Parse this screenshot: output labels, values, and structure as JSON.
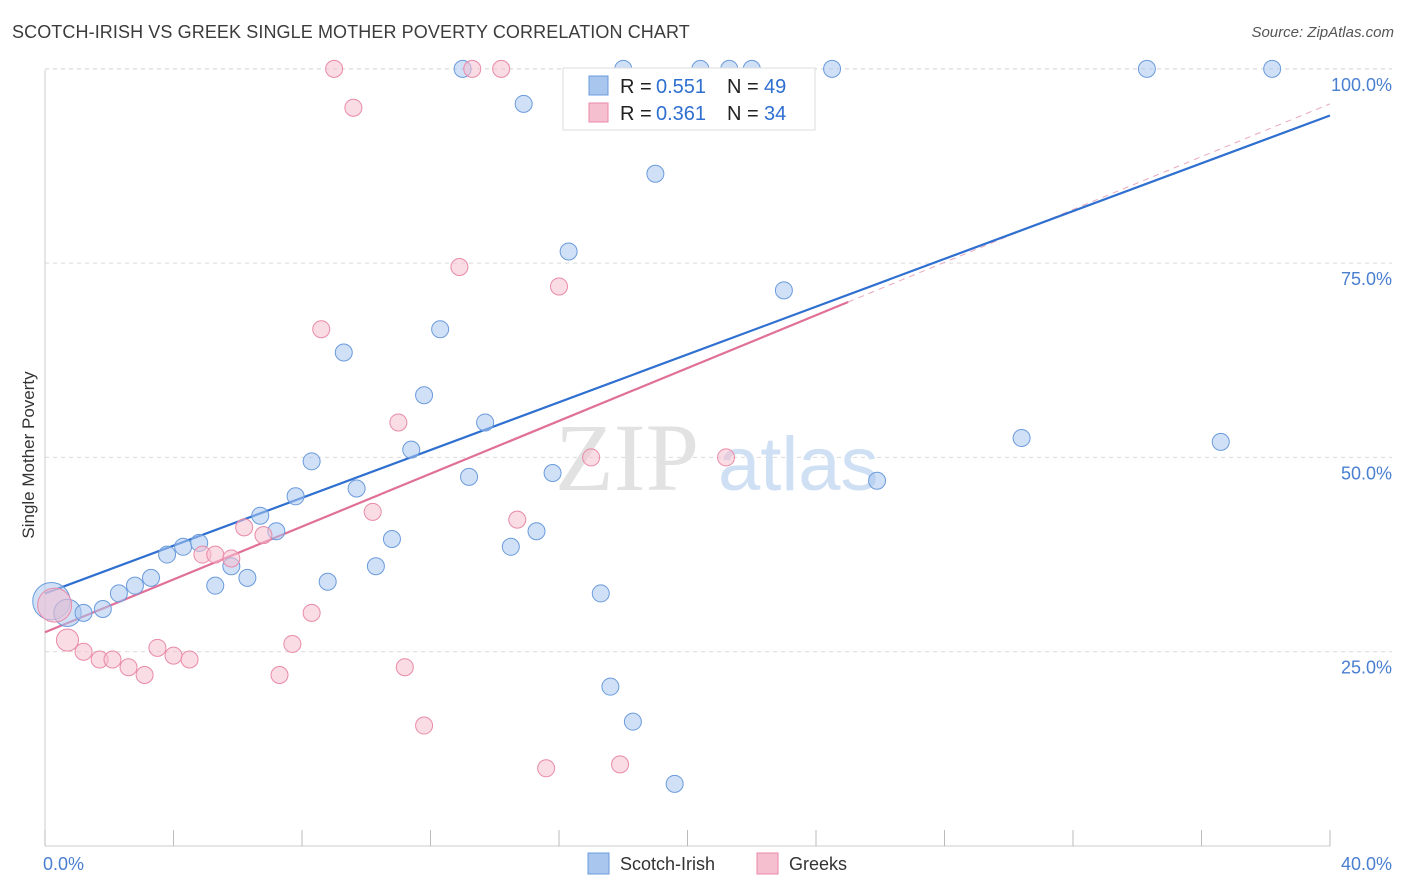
{
  "title": "SCOTCH-IRISH VS GREEK SINGLE MOTHER POVERTY CORRELATION CHART",
  "source": "Source: ZipAtlas.com",
  "watermark": {
    "zip": "ZIP",
    "atlas": "atlas"
  },
  "colors": {
    "blue_fill": "#a9c7ee",
    "blue_stroke": "#6b9bdc",
    "blue_line": "#2f6fd0",
    "pink_fill": "#f6bfd0",
    "pink_stroke": "#e98aa8",
    "pink_line": "#e07098",
    "grid": "#d9d9d9",
    "axis_text": "#4a7fd0"
  },
  "legend": {
    "r_label": "R =",
    "n_label": "N =",
    "series": [
      {
        "name": "Scotch-Irish",
        "r": "0.551",
        "n": "49"
      },
      {
        "name": "Greeks",
        "r": "0.361",
        "n": "34"
      }
    ]
  },
  "chart_data": {
    "type": "scatter",
    "title": "SCOTCH-IRISH VS GREEK SINGLE MOTHER POVERTY CORRELATION CHART",
    "xlabel": "",
    "ylabel": "Single Mother Poverty",
    "xlim": [
      0,
      40
    ],
    "ylim": [
      0,
      105
    ],
    "x_ticks": [
      0,
      4,
      8,
      12,
      16,
      20,
      24,
      28,
      32,
      36,
      40
    ],
    "x_tick_labels": {
      "0": "0.0%",
      "40": "40.0%"
    },
    "y_ticks": [
      25,
      50,
      75,
      100
    ],
    "y_tick_labels": [
      "25.0%",
      "50.0%",
      "75.0%",
      "100.0%"
    ],
    "grid": true,
    "legend_position": "top-center",
    "series": [
      {
        "name": "Scotch-Irish",
        "color": "#a9c7ee",
        "points": [
          {
            "x": 0.2,
            "y": 31.5,
            "s": 2.2
          },
          {
            "x": 0.7,
            "y": 30.0,
            "s": 1.6
          },
          {
            "x": 1.2,
            "y": 30.0
          },
          {
            "x": 1.8,
            "y": 30.5
          },
          {
            "x": 2.3,
            "y": 32.5
          },
          {
            "x": 2.8,
            "y": 33.5
          },
          {
            "x": 3.3,
            "y": 34.5
          },
          {
            "x": 3.8,
            "y": 37.5
          },
          {
            "x": 4.3,
            "y": 38.5
          },
          {
            "x": 4.8,
            "y": 39.0
          },
          {
            "x": 5.3,
            "y": 33.5
          },
          {
            "x": 5.8,
            "y": 36.0
          },
          {
            "x": 6.3,
            "y": 34.5
          },
          {
            "x": 6.7,
            "y": 42.5
          },
          {
            "x": 7.2,
            "y": 40.5
          },
          {
            "x": 7.8,
            "y": 45.0
          },
          {
            "x": 8.3,
            "y": 49.5
          },
          {
            "x": 8.8,
            "y": 34.0
          },
          {
            "x": 9.3,
            "y": 63.5
          },
          {
            "x": 9.7,
            "y": 46.0
          },
          {
            "x": 10.3,
            "y": 36.0
          },
          {
            "x": 10.8,
            "y": 39.5
          },
          {
            "x": 11.4,
            "y": 51.0
          },
          {
            "x": 11.8,
            "y": 58.0
          },
          {
            "x": 12.3,
            "y": 66.5
          },
          {
            "x": 13.0,
            "y": 100.0
          },
          {
            "x": 13.2,
            "y": 47.5
          },
          {
            "x": 13.7,
            "y": 54.5
          },
          {
            "x": 14.5,
            "y": 38.5
          },
          {
            "x": 14.9,
            "y": 95.5
          },
          {
            "x": 15.3,
            "y": 40.5
          },
          {
            "x": 15.8,
            "y": 48.0
          },
          {
            "x": 16.3,
            "y": 76.5
          },
          {
            "x": 17.3,
            "y": 32.5
          },
          {
            "x": 17.6,
            "y": 20.5
          },
          {
            "x": 18.0,
            "y": 100.0
          },
          {
            "x": 18.3,
            "y": 16.0
          },
          {
            "x": 19.0,
            "y": 86.5
          },
          {
            "x": 19.6,
            "y": 8.0
          },
          {
            "x": 21.3,
            "y": 100.0
          },
          {
            "x": 23.0,
            "y": 71.5
          },
          {
            "x": 24.5,
            "y": 100.0
          },
          {
            "x": 25.9,
            "y": 47.0
          },
          {
            "x": 30.4,
            "y": 52.5
          },
          {
            "x": 34.3,
            "y": 100.0
          },
          {
            "x": 36.6,
            "y": 52.0
          },
          {
            "x": 38.2,
            "y": 100.0
          },
          {
            "x": 22.0,
            "y": 100.0
          },
          {
            "x": 20.4,
            "y": 100.0
          }
        ],
        "trend": {
          "x0": 0,
          "y0": 32.5,
          "x1": 40,
          "y1": 94.0
        }
      },
      {
        "name": "Greeks",
        "color": "#f6bfd0",
        "points": [
          {
            "x": 0.3,
            "y": 31.0,
            "s": 2.0
          },
          {
            "x": 0.7,
            "y": 26.5,
            "s": 1.3
          },
          {
            "x": 1.2,
            "y": 25.0
          },
          {
            "x": 1.7,
            "y": 24.0
          },
          {
            "x": 2.1,
            "y": 24.0
          },
          {
            "x": 2.6,
            "y": 23.0
          },
          {
            "x": 3.1,
            "y": 22.0
          },
          {
            "x": 3.5,
            "y": 25.5
          },
          {
            "x": 4.0,
            "y": 24.5
          },
          {
            "x": 4.5,
            "y": 24.0
          },
          {
            "x": 4.9,
            "y": 37.5
          },
          {
            "x": 5.3,
            "y": 37.5
          },
          {
            "x": 5.8,
            "y": 37.0
          },
          {
            "x": 6.2,
            "y": 41.0
          },
          {
            "x": 6.8,
            "y": 40.0
          },
          {
            "x": 7.3,
            "y": 22.0
          },
          {
            "x": 7.7,
            "y": 26.0
          },
          {
            "x": 8.6,
            "y": 66.5
          },
          {
            "x": 8.3,
            "y": 30.0
          },
          {
            "x": 9.0,
            "y": 100.0
          },
          {
            "x": 9.6,
            "y": 95.0
          },
          {
            "x": 10.2,
            "y": 43.0
          },
          {
            "x": 11.0,
            "y": 54.5
          },
          {
            "x": 11.2,
            "y": 23.0
          },
          {
            "x": 11.8,
            "y": 15.5
          },
          {
            "x": 12.9,
            "y": 74.5
          },
          {
            "x": 13.3,
            "y": 100.0
          },
          {
            "x": 14.2,
            "y": 100.0
          },
          {
            "x": 14.7,
            "y": 42.0
          },
          {
            "x": 15.6,
            "y": 10.0
          },
          {
            "x": 16.0,
            "y": 72.0
          },
          {
            "x": 17.0,
            "y": 50.0
          },
          {
            "x": 17.9,
            "y": 10.5
          },
          {
            "x": 21.2,
            "y": 50.0
          }
        ],
        "trend": {
          "x0": 0,
          "y0": 27.5,
          "x1": 25,
          "y1": 70.0
        },
        "trend_extension": {
          "x0": 25,
          "y0": 70.0,
          "x1": 40,
          "y1": 95.5
        }
      }
    ]
  }
}
